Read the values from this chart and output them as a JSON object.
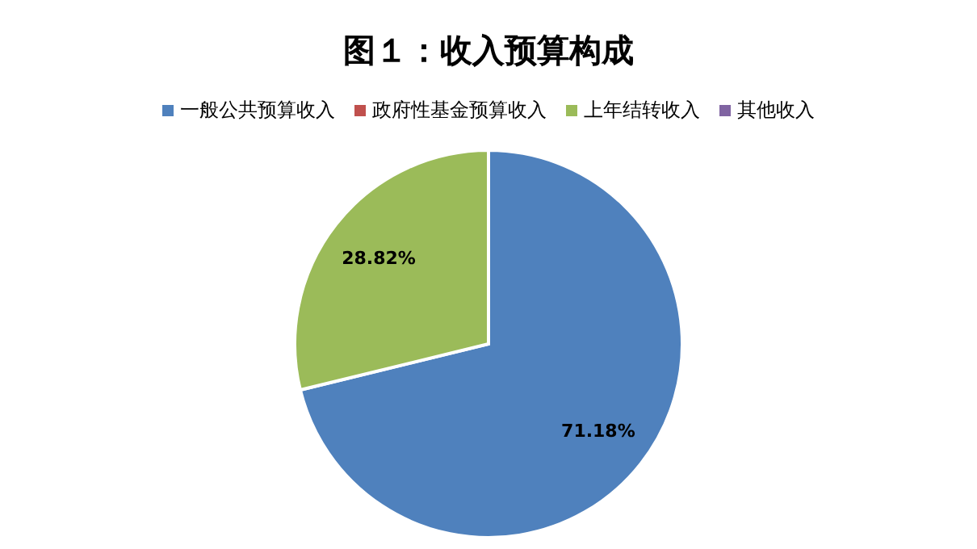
{
  "chart_data": {
    "type": "pie",
    "title": "图１：收入预算构成",
    "categories": [
      "一般公共预算收入",
      "政府性基金预算收入",
      "上年结转收入",
      "其他收入"
    ],
    "values": [
      71.18,
      0,
      28.82,
      0
    ],
    "colors": [
      "#4f81bd",
      "#c0504d",
      "#9bbb59",
      "#8064a2"
    ],
    "value_labels": [
      "71.18%",
      null,
      "28.82%",
      null
    ],
    "legend": "top"
  }
}
